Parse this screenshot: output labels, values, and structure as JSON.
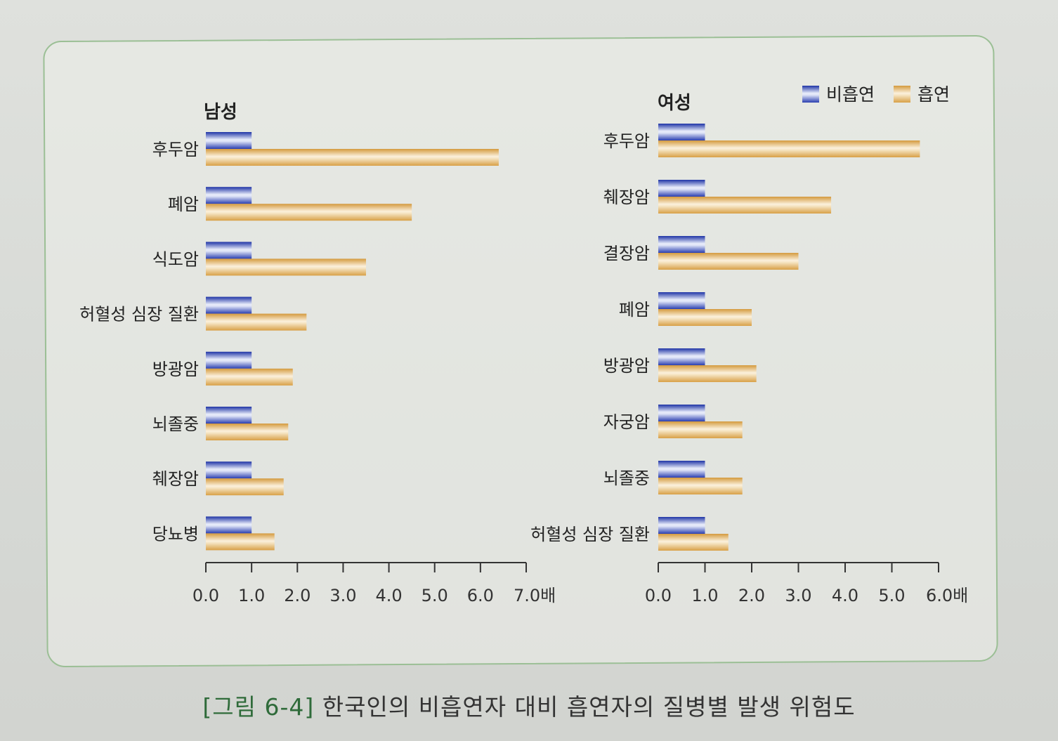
{
  "legend": {
    "nonsmoker_label": "비흡연",
    "smoker_label": "흡연"
  },
  "colors": {
    "nonsmoker": "#2e48b8",
    "smoker": "#e2aa55",
    "axis": "#333333",
    "panel_border": "#9bbf95"
  },
  "caption": {
    "label": "[그림 6-4]",
    "text": "한국인의 비흡연자 대비 흡연자의 질병별 발생 위험도"
  },
  "chart_data": [
    {
      "type": "bar",
      "orientation": "horizontal",
      "title": "남성",
      "categories": [
        "후두암",
        "폐암",
        "식도암",
        "허혈성 심장 질환",
        "방광암",
        "뇌졸중",
        "췌장암",
        "당뇨병"
      ],
      "series": [
        {
          "name": "비흡연",
          "values": [
            1.0,
            1.0,
            1.0,
            1.0,
            1.0,
            1.0,
            1.0,
            1.0
          ]
        },
        {
          "name": "흡연",
          "values": [
            6.4,
            4.5,
            3.5,
            2.2,
            1.9,
            1.8,
            1.7,
            1.5
          ]
        }
      ],
      "xlim": [
        0,
        7
      ],
      "xticks": [
        "0.0",
        "1.0",
        "2.0",
        "3.0",
        "4.0",
        "5.0",
        "6.0",
        "7.0배"
      ]
    },
    {
      "type": "bar",
      "orientation": "horizontal",
      "title": "여성",
      "categories": [
        "후두암",
        "췌장암",
        "결장암",
        "폐암",
        "방광암",
        "자궁암",
        "뇌졸중",
        "허혈성 심장 질환"
      ],
      "series": [
        {
          "name": "비흡연",
          "values": [
            1.0,
            1.0,
            1.0,
            1.0,
            1.0,
            1.0,
            1.0,
            1.0
          ]
        },
        {
          "name": "흡연",
          "values": [
            5.6,
            3.7,
            3.0,
            2.0,
            2.1,
            1.8,
            1.8,
            1.5
          ]
        }
      ],
      "xlim": [
        0,
        6
      ],
      "xticks": [
        "0.0",
        "1.0",
        "2.0",
        "3.0",
        "4.0",
        "5.0",
        "6.0배"
      ]
    }
  ]
}
